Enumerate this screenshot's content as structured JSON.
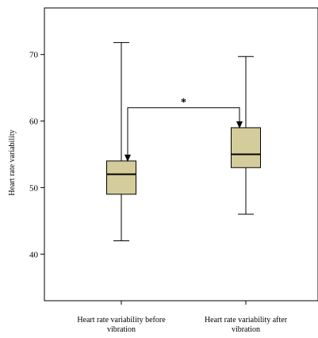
{
  "chart_data": {
    "type": "box",
    "title": "",
    "xlabel": "",
    "ylabel": "Heart rate variability",
    "ylim": [
      33,
      77
    ],
    "yticks": [
      40,
      50,
      60,
      70
    ],
    "grid": false,
    "categories": [
      {
        "line1": "Heart rate variability before",
        "line2": "vibration"
      },
      {
        "line1": "Heart rate variability after",
        "line2": "vibration"
      }
    ],
    "boxes": [
      {
        "min": 42,
        "q1": 49,
        "median": 52,
        "q3": 54,
        "max": 71.8
      },
      {
        "min": 46,
        "q1": 53,
        "median": 55,
        "q3": 59,
        "max": 69.7
      }
    ],
    "box_color": "#d4cc9a",
    "significance": {
      "label": "*",
      "from": 0,
      "to": 1,
      "y": 62
    }
  }
}
